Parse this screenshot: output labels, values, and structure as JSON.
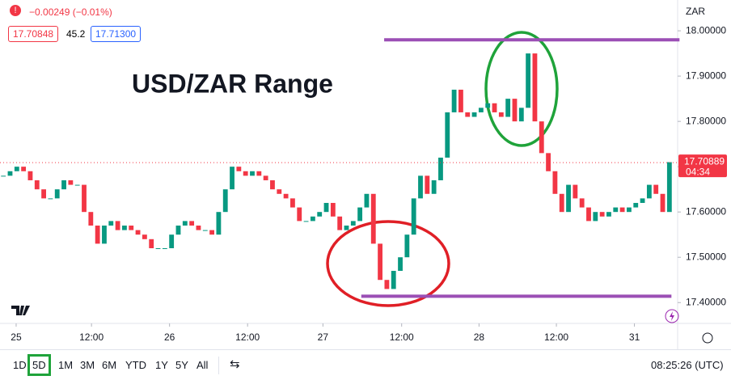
{
  "chart_data": {
    "type": "candlestick",
    "title": "USD/ZAR Range",
    "header": {
      "change": "−0.00249 (−0.01%)",
      "bid": "17.70848",
      "spread": "45.2",
      "ask": "17.71300"
    },
    "currency": "ZAR",
    "close": [
      17.68,
      17.69,
      17.7,
      17.69,
      17.67,
      17.65,
      17.63,
      17.63,
      17.65,
      17.67,
      17.66,
      17.66,
      17.6,
      17.57,
      17.53,
      17.57,
      17.58,
      17.56,
      17.57,
      17.56,
      17.55,
      17.54,
      17.52,
      17.52,
      17.52,
      17.55,
      17.57,
      17.58,
      17.57,
      17.56,
      17.56,
      17.55,
      17.6,
      17.65,
      17.7,
      17.69,
      17.68,
      17.69,
      17.68,
      17.67,
      17.65,
      17.64,
      17.63,
      17.61,
      17.58,
      17.58,
      17.59,
      17.6,
      17.62,
      17.59,
      17.56,
      17.57,
      17.58,
      17.61,
      17.64,
      17.53,
      17.45,
      17.43,
      17.47,
      17.5,
      17.55,
      17.63,
      17.68,
      17.64,
      17.67,
      17.72,
      17.82,
      17.87,
      17.82,
      17.81,
      17.82,
      17.83,
      17.84,
      17.82,
      17.81,
      17.85,
      17.8,
      17.83,
      17.95,
      17.8,
      17.73,
      17.69,
      17.64,
      17.6,
      17.66,
      17.63,
      17.61,
      17.58,
      17.6,
      17.59,
      17.6,
      17.61,
      17.6,
      17.61,
      17.62,
      17.63,
      17.66,
      17.64,
      17.6,
      17.71
    ],
    "up_color": "#089981",
    "down_color": "#f23645",
    "ylim": [
      17.354,
      18.068
    ],
    "yticks": [
      {
        "value": 17.4,
        "label": "17.40000"
      },
      {
        "value": 17.5,
        "label": "17.50000"
      },
      {
        "value": 17.6,
        "label": "17.60000"
      },
      {
        "value": 17.7,
        "label": "17.70000"
      },
      {
        "value": 17.8,
        "label": "17.80000"
      },
      {
        "value": 17.9,
        "label": "17.90000"
      },
      {
        "value": 18,
        "label": "18.00000"
      }
    ],
    "xticks": [
      {
        "value": 1.9,
        "label": "25"
      },
      {
        "value": 13.1,
        "label": "12:00"
      },
      {
        "value": 24.7,
        "label": "26"
      },
      {
        "value": 36.3,
        "label": "12:00"
      },
      {
        "value": 47.5,
        "label": "27"
      },
      {
        "value": 59.2,
        "label": "12:00"
      },
      {
        "value": 70.7,
        "label": "28"
      },
      {
        "value": 82.2,
        "label": "12:00"
      },
      {
        "value": 93.8,
        "label": "31"
      }
    ],
    "grid": false,
    "last_price": 17.70889,
    "countdown": "04:34",
    "range_lines": [
      {
        "value": 17.98,
        "from": 56.6,
        "to": 100.5
      },
      {
        "value": 17.414,
        "from": 53.2,
        "to": 99.3
      }
    ],
    "range_color": "#9b4fb5",
    "timeframes": [
      "1D",
      "5D",
      "1M",
      "3M",
      "6M",
      "YTD",
      "1Y",
      "5Y",
      "All"
    ],
    "clock": "08:25:26 (UTC)"
  }
}
